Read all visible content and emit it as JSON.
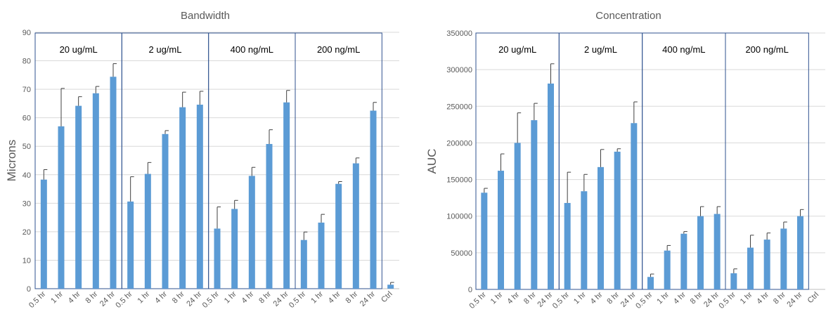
{
  "colors": {
    "bar": "#5b9bd5",
    "grid": "#d9d9d9",
    "axis_text": "#595959",
    "title_text": "#595959",
    "group_border": "#2f528f",
    "error_bar": "#404040"
  },
  "chart_data": [
    {
      "type": "bar",
      "title": "Bandwidth",
      "xlabel": "",
      "ylabel": "Microns",
      "ylim": [
        0,
        90
      ],
      "ytick_step": 10,
      "grid": true,
      "categories": [
        "0.5 hr",
        "1 hr",
        "4 hr",
        "8 hr",
        "24 hr",
        "0.5 hr",
        "1 hr",
        "4 hr",
        "8 hr",
        "24 hr",
        "0.5 hr",
        "1 hr",
        "4 hr",
        "8 hr",
        "24 hr",
        "0.5 hr",
        "1 hr",
        "4 hr",
        "8 hr",
        "24 hr",
        "Ctrl"
      ],
      "values": [
        38.3,
        57,
        64.2,
        68.6,
        74.4,
        30.6,
        40.3,
        54.3,
        63.7,
        64.6,
        21.1,
        28,
        39.6,
        50.8,
        65.4,
        17.1,
        23.2,
        36.8,
        44,
        62.5,
        1.4
      ],
      "errors": [
        3.5,
        13.3,
        3.2,
        2.4,
        4.6,
        8.7,
        4,
        1.2,
        5.3,
        4.7,
        7.6,
        3,
        3,
        5,
        4.2,
        2.8,
        2.9,
        0.8,
        1.9,
        2.9,
        0.8
      ],
      "groups": [
        {
          "label": "20 ug/mL",
          "start": 0,
          "end": 4
        },
        {
          "label": "2 ug/mL",
          "start": 5,
          "end": 9
        },
        {
          "label": "400  ng/mL",
          "start": 10,
          "end": 14
        },
        {
          "label": "200  ng/mL",
          "start": 15,
          "end": 19
        }
      ]
    },
    {
      "type": "bar",
      "title": "Concentration",
      "xlabel": "",
      "ylabel": "AUC",
      "ylim": [
        0,
        350000
      ],
      "ytick_step": 50000,
      "grid": true,
      "categories": [
        "0.5 hr",
        "1 hr",
        "4 hr",
        "8 hr",
        "24 hr",
        "0.5 hr",
        "1 hr",
        "4 hr",
        "8 hr",
        "24 hr",
        "0.5 hr",
        "1 hr",
        "4 hr",
        "8 hr",
        "24 hr",
        "0.5 hr",
        "1 hr",
        "4 hr",
        "8 hr",
        "24 hr",
        "Ctrl"
      ],
      "values": [
        132000,
        162000,
        200000,
        231000,
        281000,
        118000,
        134000,
        167000,
        188000,
        227000,
        17000,
        53000,
        76000,
        100000,
        103000,
        22000,
        57000,
        68000,
        83000,
        100000,
        0
      ],
      "errors": [
        6000,
        23000,
        41000,
        23000,
        27000,
        42000,
        23000,
        24000,
        4000,
        29000,
        4000,
        7000,
        3000,
        13000,
        10000,
        6000,
        17000,
        9000,
        9000,
        9000,
        0
      ],
      "groups": [
        {
          "label": "20 ug/mL",
          "start": 0,
          "end": 4
        },
        {
          "label": "2 ug/mL",
          "start": 5,
          "end": 9
        },
        {
          "label": "400  ng/mL",
          "start": 10,
          "end": 14
        },
        {
          "label": "200  ng/mL",
          "start": 15,
          "end": 19
        }
      ]
    }
  ]
}
